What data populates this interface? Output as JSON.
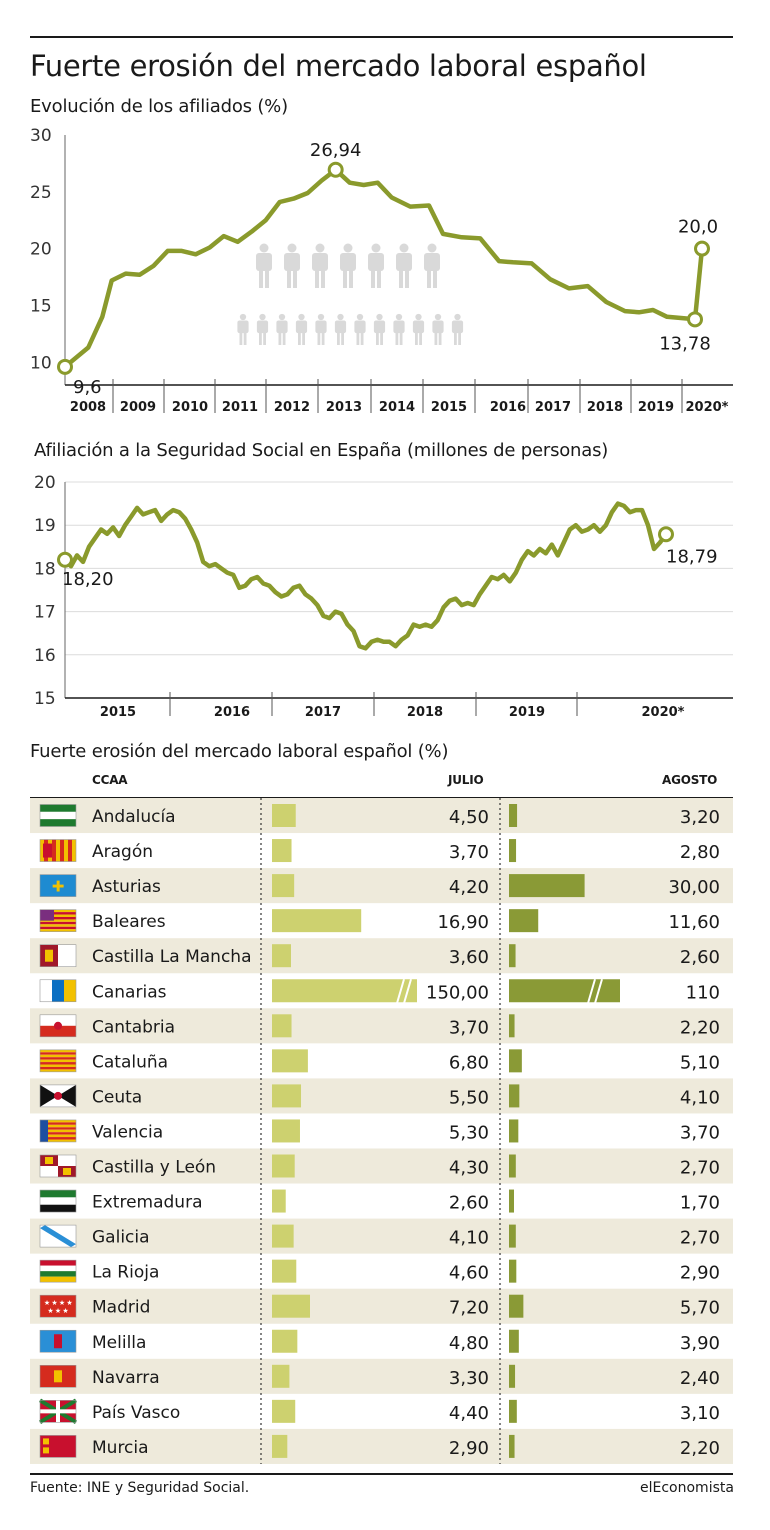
{
  "title": "Fuerte erosión del mercado laboral español",
  "charts": {
    "afiliados_title": "Evolución de los afiliados (%)",
    "seguridad_title": "Afiliación a la Seguridad Social en España (millones de personas)",
    "tabla_title": "Fuerte erosión del mercado laboral español (%)"
  },
  "table_headers": {
    "region": "CCAA",
    "julio": "JULIO",
    "agosto": "AGOSTO"
  },
  "colors": {
    "line": "#8a9a2c",
    "julio_bar": "#cdd16f",
    "agosto_bar": "#8a9a36",
    "stripe": "#eeeadb",
    "people": "#d9d9d9"
  },
  "footer": {
    "source": "Fuente: INE y Seguridad Social.",
    "brand": "elEconomista"
  },
  "chart_data": [
    {
      "type": "line",
      "title": "Evolución de los afiliados (%)",
      "ylim": [
        8,
        30
      ],
      "yticks": [
        "10",
        "15",
        "20",
        "25",
        "30"
      ],
      "xticks": [
        "2008",
        "2009",
        "2010",
        "2011",
        "2012",
        "2013",
        "2014",
        "2015",
        "2016",
        "2017",
        "2018",
        "2019",
        "2020*"
      ],
      "x": [
        0,
        0.5,
        0.8,
        1.0,
        1.3,
        1.6,
        1.9,
        2.2,
        2.5,
        2.8,
        3.1,
        3.4,
        3.7,
        4.0,
        4.3,
        4.6,
        4.9,
        5.2,
        5.5,
        5.8,
        6.1,
        6.4,
        6.7,
        7.0,
        7.4,
        7.8,
        8.1,
        8.5,
        8.9,
        9.3,
        9.6,
        10.0,
        10.4,
        10.8,
        11.2,
        11.6,
        12.0,
        12.3
      ],
      "values": [
        9.6,
        11.3,
        14.0,
        17.2,
        17.8,
        17.7,
        18.5,
        19.8,
        19.8,
        19.5,
        20.1,
        21.1,
        20.6,
        21.5,
        22.5,
        24.1,
        24.4,
        24.9,
        26.0,
        26.94,
        25.8,
        25.6,
        25.8,
        24.5,
        23.7,
        23.8,
        21.3,
        21.0,
        20.9,
        18.9,
        18.8,
        18.7,
        17.3,
        16.5,
        16.7,
        15.3,
        14.5,
        14.4
      ],
      "x_tail": [
        12.6,
        12.9,
        13.2,
        13.5,
        13.65
      ],
      "values_tail": [
        14.6,
        14.0,
        13.9,
        13.78,
        20.0
      ],
      "annotations": [
        "9,6",
        "26,94",
        "13,78",
        "20,0"
      ]
    },
    {
      "type": "line",
      "title": "Afiliación a la Seguridad Social en España (millones de personas)",
      "ylim": [
        15,
        20
      ],
      "yticks": [
        "15",
        "16",
        "17",
        "18",
        "19",
        "20"
      ],
      "xticks": [
        "2015",
        "2016",
        "2017",
        "2018",
        "2019",
        "2020*"
      ],
      "values": [
        18.2,
        18.05,
        18.3,
        18.15,
        18.5,
        18.7,
        18.9,
        18.8,
        18.95,
        18.75,
        19.0,
        19.2,
        19.4,
        19.25,
        19.3,
        19.35,
        19.1,
        19.25,
        19.35,
        19.3,
        19.15,
        18.9,
        18.6,
        18.15,
        18.05,
        18.1,
        18.0,
        17.9,
        17.85,
        17.55,
        17.6,
        17.75,
        17.8,
        17.65,
        17.6,
        17.45,
        17.35,
        17.4,
        17.55,
        17.6,
        17.4,
        17.3,
        17.15,
        16.9,
        16.85,
        17.0,
        16.95,
        16.7,
        16.55,
        16.2,
        16.15,
        16.3,
        16.35,
        16.3,
        16.3,
        16.2,
        16.35,
        16.45,
        16.7,
        16.65,
        16.7,
        16.65,
        16.8,
        17.1,
        17.25,
        17.3,
        17.15,
        17.2,
        17.15,
        17.4,
        17.6,
        17.8,
        17.75,
        17.85,
        17.7,
        17.9,
        18.2,
        18.4,
        18.3,
        18.45,
        18.35,
        18.55,
        18.3,
        18.6,
        18.9,
        19.0,
        18.85,
        18.9,
        19.0,
        18.85,
        19.0,
        19.3,
        19.5,
        19.45,
        19.3,
        19.35,
        19.35,
        19.0,
        18.45,
        18.6,
        18.79
      ],
      "annotations": [
        "18,20",
        "18,79"
      ]
    },
    {
      "type": "table",
      "title": "Fuerte erosión del mercado laboral español (%)",
      "columns": [
        "CCAA",
        "JULIO",
        "AGOSTO"
      ],
      "rows": [
        {
          "region": "Andalucía",
          "julio": "4,50",
          "agosto": "3,20",
          "julio_value": 4.5,
          "agosto_value": 3.2,
          "flag": "andalucia"
        },
        {
          "region": "Aragón",
          "julio": "3,70",
          "agosto": "2,80",
          "julio_value": 3.7,
          "agosto_value": 2.8,
          "flag": "aragon"
        },
        {
          "region": "Asturias",
          "julio": "4,20",
          "agosto": "30,00",
          "julio_value": 4.2,
          "agosto_value": 30.0,
          "flag": "asturias"
        },
        {
          "region": "Baleares",
          "julio": "16,90",
          "agosto": "11,60",
          "julio_value": 16.9,
          "agosto_value": 11.6,
          "flag": "baleares"
        },
        {
          "region": "Castilla La Mancha",
          "julio": "3,60",
          "agosto": "2,60",
          "julio_value": 3.6,
          "agosto_value": 2.6,
          "flag": "castilla-la-mancha"
        },
        {
          "region": "Canarias",
          "julio": "150,00",
          "agosto": "110",
          "julio_value": 150.0,
          "agosto_value": 110.0,
          "flag": "canarias"
        },
        {
          "region": "Cantabria",
          "julio": "3,70",
          "agosto": "2,20",
          "julio_value": 3.7,
          "agosto_value": 2.2,
          "flag": "cantabria"
        },
        {
          "region": "Cataluña",
          "julio": "6,80",
          "agosto": "5,10",
          "julio_value": 6.8,
          "agosto_value": 5.1,
          "flag": "cataluna"
        },
        {
          "region": "Ceuta",
          "julio": "5,50",
          "agosto": "4,10",
          "julio_value": 5.5,
          "agosto_value": 4.1,
          "flag": "ceuta"
        },
        {
          "region": "Valencia",
          "julio": "5,30",
          "agosto": "3,70",
          "julio_value": 5.3,
          "agosto_value": 3.7,
          "flag": "valencia"
        },
        {
          "region": "Castilla y León",
          "julio": "4,30",
          "agosto": "2,70",
          "julio_value": 4.3,
          "agosto_value": 2.7,
          "flag": "castilla-y-leon"
        },
        {
          "region": "Extremadura",
          "julio": "2,60",
          "agosto": "1,70",
          "julio_value": 2.6,
          "agosto_value": 1.7,
          "flag": "extremadura"
        },
        {
          "region": "Galicia",
          "julio": "4,10",
          "agosto": "2,70",
          "julio_value": 4.1,
          "agosto_value": 2.7,
          "flag": "galicia"
        },
        {
          "region": "La Rioja",
          "julio": "4,60",
          "agosto": "2,90",
          "julio_value": 4.6,
          "agosto_value": 2.9,
          "flag": "la-rioja"
        },
        {
          "region": "Madrid",
          "julio": "7,20",
          "agosto": "5,70",
          "julio_value": 7.2,
          "agosto_value": 5.7,
          "flag": "madrid"
        },
        {
          "region": "Melilla",
          "julio": "4,80",
          "agosto": "3,90",
          "julio_value": 4.8,
          "agosto_value": 3.9,
          "flag": "melilla"
        },
        {
          "region": "Navarra",
          "julio": "3,30",
          "agosto": "2,40",
          "julio_value": 3.3,
          "agosto_value": 2.4,
          "flag": "navarra"
        },
        {
          "region": "País Vasco",
          "julio": "4,40",
          "agosto": "3,10",
          "julio_value": 4.4,
          "agosto_value": 3.1,
          "flag": "pais-vasco"
        },
        {
          "region": "Murcia",
          "julio": "2,90",
          "agosto": "2,20",
          "julio_value": 2.9,
          "agosto_value": 2.2,
          "flag": "murcia"
        }
      ]
    }
  ]
}
